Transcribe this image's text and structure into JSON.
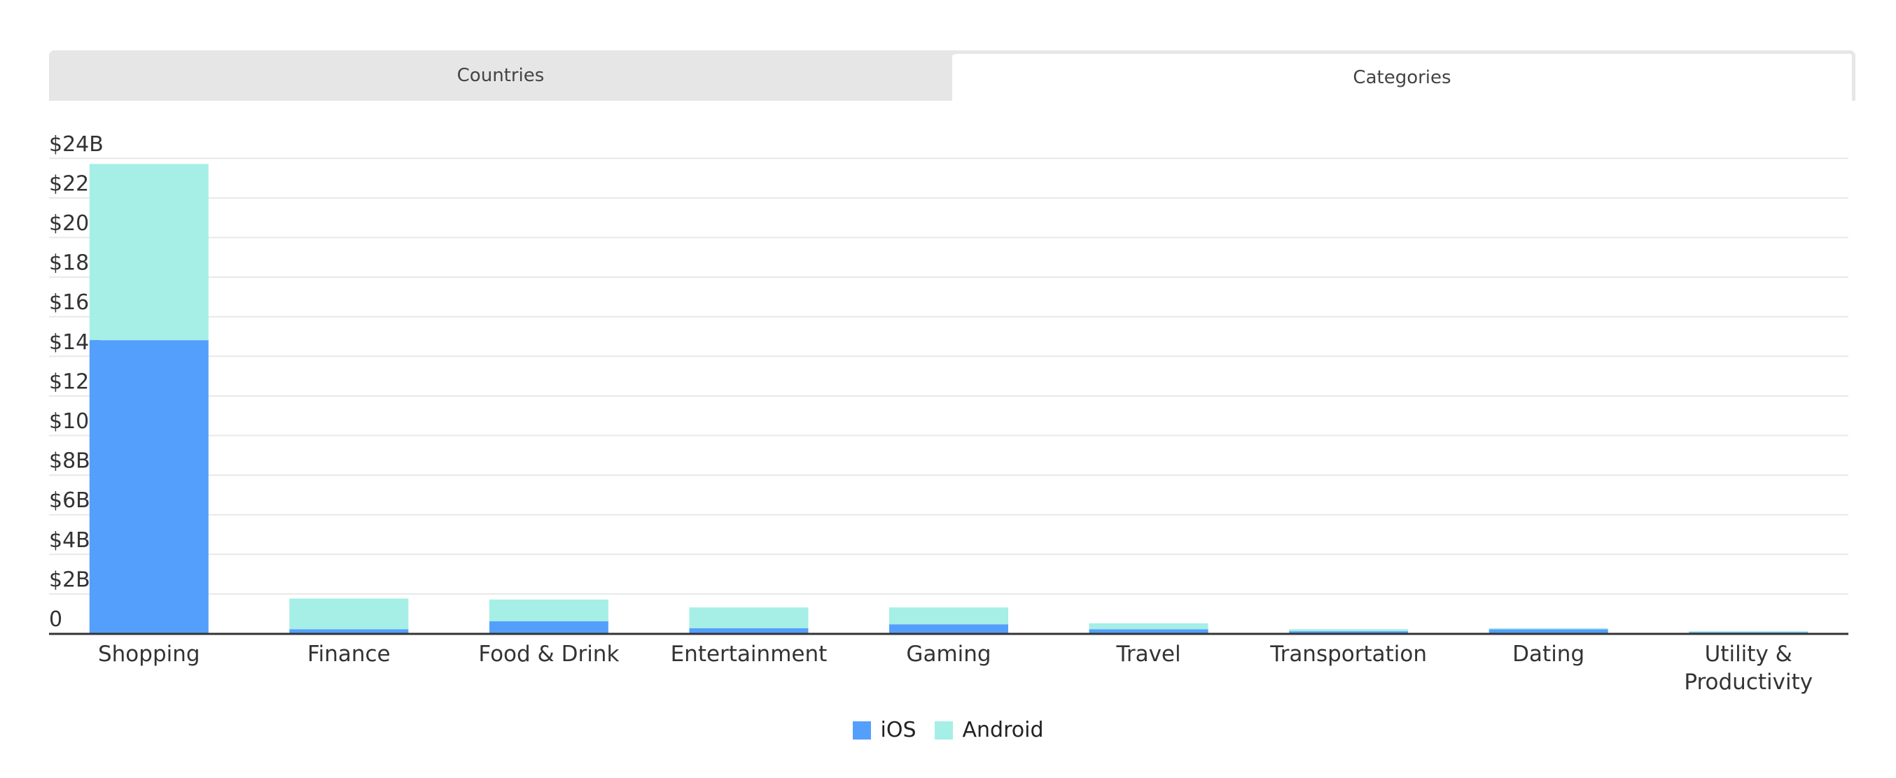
{
  "tabs": [
    {
      "label": "Countries",
      "active": false
    },
    {
      "label": "Categories",
      "active": true
    }
  ],
  "colors": {
    "ios": "#559ffc",
    "android": "#a5efe6",
    "grid": "#e8e8e8",
    "axis": "#333333"
  },
  "chart_data": {
    "type": "bar",
    "stacked": true,
    "title": "",
    "xlabel": "",
    "ylabel": "",
    "categories": [
      "Shopping",
      "Finance",
      "Food & Drink",
      "Entertainment",
      "Gaming",
      "Travel",
      "Transportation",
      "Dating",
      "Utility & Productivity"
    ],
    "category_lines": [
      [
        "Shopping"
      ],
      [
        "Finance"
      ],
      [
        "Food & Drink"
      ],
      [
        "Entertainment"
      ],
      [
        "Gaming"
      ],
      [
        "Travel"
      ],
      [
        "Transportation"
      ],
      [
        "Dating"
      ],
      [
        "Utility &",
        "Productivity"
      ]
    ],
    "series": [
      {
        "name": "iOS",
        "color": "#559ffc",
        "values": [
          14.8,
          0.2,
          0.6,
          0.25,
          0.45,
          0.2,
          0.1,
          0.2,
          0.05
        ]
      },
      {
        "name": "Android",
        "color": "#a5efe6",
        "values": [
          8.9,
          1.55,
          1.1,
          1.05,
          0.85,
          0.3,
          0.1,
          0.05,
          0.05
        ]
      }
    ],
    "ylim": [
      0,
      24
    ],
    "yticks": [
      0,
      2,
      4,
      6,
      8,
      10,
      12,
      14,
      16,
      18,
      20,
      22,
      24
    ],
    "ytick_labels": [
      "0",
      "$2B",
      "$4B",
      "$6B",
      "$8B",
      "$10B",
      "$12B",
      "$14B",
      "$16B",
      "$18B",
      "$20B",
      "$22B",
      "$24B"
    ],
    "grid": true,
    "legend": "bottom-center"
  }
}
